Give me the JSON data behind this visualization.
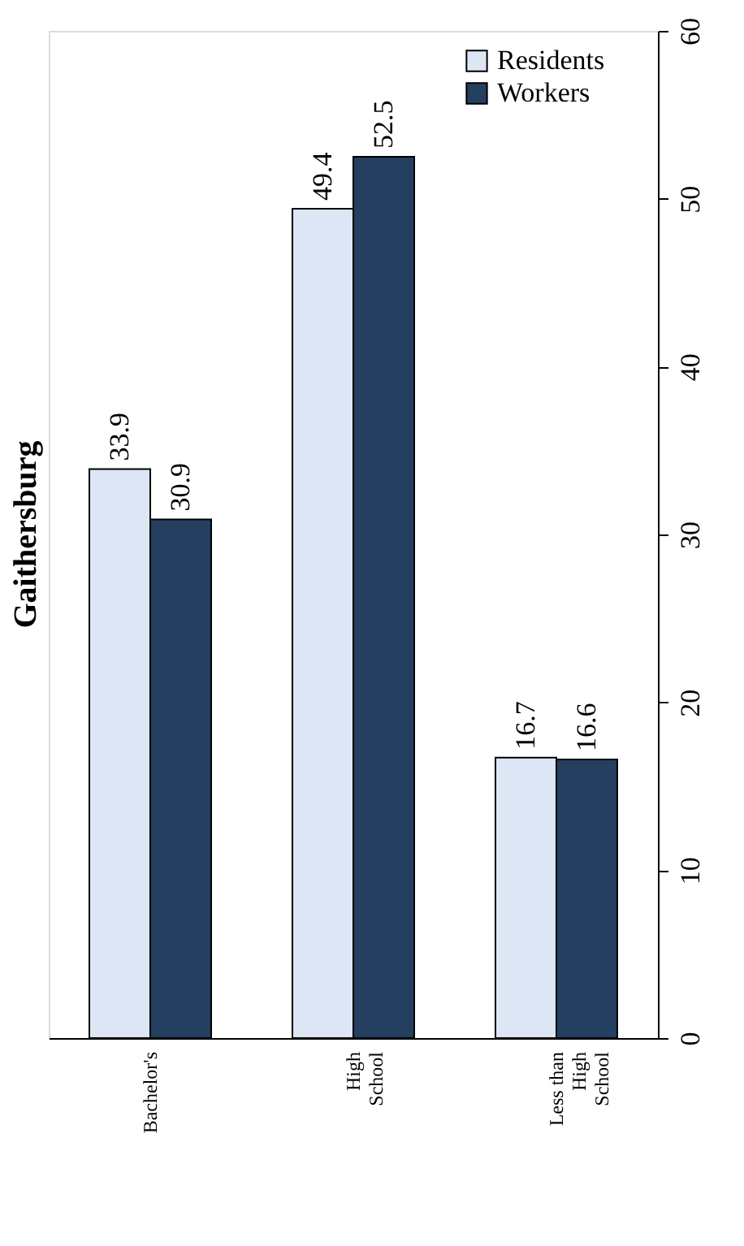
{
  "chart_data": {
    "type": "bar",
    "title": "Gaithersburg",
    "categories": [
      "Bachelor's",
      "High School",
      "Less than High School"
    ],
    "series": [
      {
        "name": "Residents",
        "color": "#dce6f4",
        "values": [
          33.9,
          49.4,
          16.7
        ]
      },
      {
        "name": "Workers",
        "color": "#243f60",
        "values": [
          30.9,
          52.5,
          16.6
        ]
      }
    ],
    "ylim": [
      0,
      60
    ],
    "yticks": [
      0,
      10,
      20,
      30,
      40,
      50,
      60
    ],
    "grid": false,
    "legend": "top right",
    "data_labels": true
  }
}
